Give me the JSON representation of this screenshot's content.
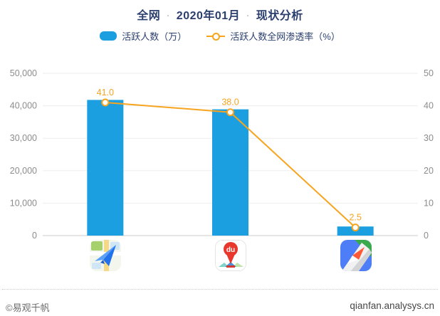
{
  "header": {
    "segment_network": "全网",
    "segment_period": "2020年01月",
    "segment_title": "现状分析",
    "separator": "·"
  },
  "legend": [
    {
      "label": "活跃人数（万）",
      "type": "bar",
      "color": "#1c9fe0"
    },
    {
      "label": "活跃人数全网渗透率（%）",
      "type": "line",
      "color": "#f7a41e"
    }
  ],
  "chart_data": {
    "type": "bar",
    "title": "全网 · 2020年01月 · 现状分析",
    "categories": [
      "高德地图",
      "百度地图",
      "腾讯地图"
    ],
    "series": [
      {
        "name": "活跃人数（万）",
        "type": "bar",
        "axis": "left",
        "color": "#1c9fe0",
        "values": [
          41800,
          38900,
          2800
        ]
      },
      {
        "name": "活跃人数全网渗透率（%）",
        "type": "line",
        "axis": "right",
        "color": "#f7a41e",
        "values": [
          41.0,
          38.0,
          2.5
        ],
        "labels": [
          "41.0",
          "38.0",
          "2.5"
        ]
      }
    ],
    "left_axis": {
      "min": 0,
      "max": 50000,
      "ticks": [
        "0",
        "10,000",
        "20,000",
        "30,000",
        "40,000",
        "50,000"
      ]
    },
    "right_axis": {
      "min": 0,
      "max": 50,
      "ticks": [
        "0",
        "10",
        "20",
        "30",
        "40",
        "50"
      ]
    },
    "grid": true,
    "legend_position": "top",
    "colors": {
      "grid_line": "#ededed",
      "zero_line": "#cccccc",
      "tick_text": "#8c8c8c"
    }
  },
  "footer": {
    "copyright": "©易观千帆",
    "site": "qianfan.analysys.cn"
  }
}
